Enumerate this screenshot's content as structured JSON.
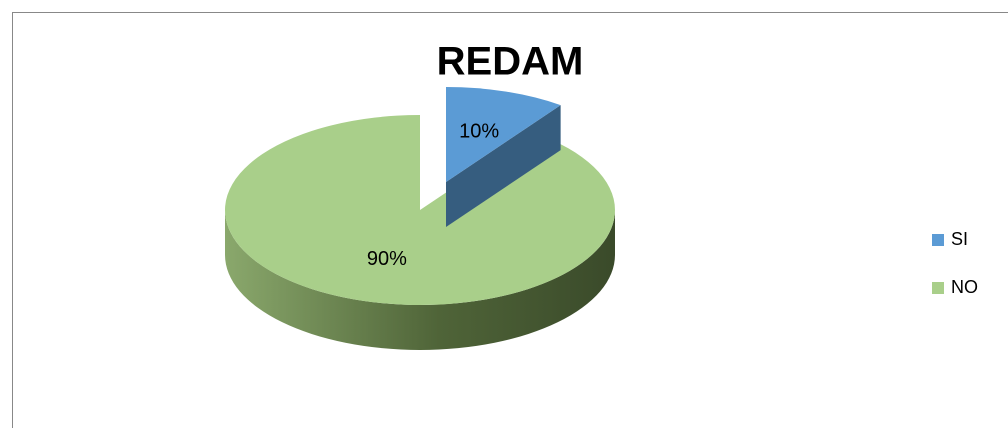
{
  "chart_data": {
    "type": "pie",
    "title": "REDAM",
    "categories": [
      "SI",
      "NO"
    ],
    "values": [
      10,
      90
    ],
    "value_labels": [
      "10%",
      "90%"
    ],
    "colors": [
      "#5b9bd5",
      "#a9cf8a"
    ],
    "legend": "right",
    "three_d": true
  }
}
